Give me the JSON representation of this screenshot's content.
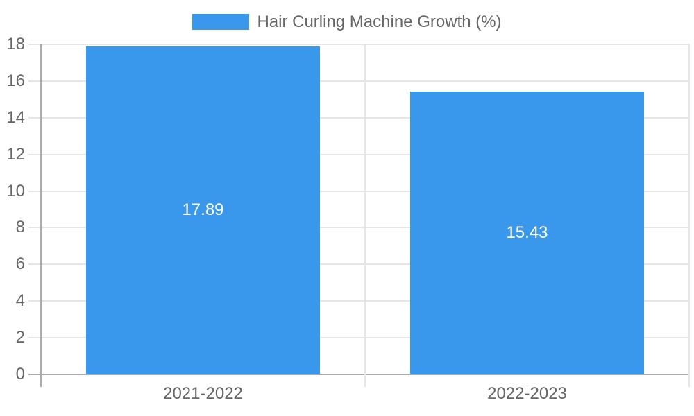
{
  "chart_data": {
    "type": "bar",
    "title": "Hair Curling Machine Growth (%)",
    "legend_position": "top",
    "categories": [
      "2021-2022",
      "2022-2023"
    ],
    "values": [
      17.89,
      15.43
    ],
    "value_labels": [
      "17.89",
      "15.43"
    ],
    "series": [
      {
        "name": "Hair Curling Machine Growth (%)",
        "values": [
          17.89,
          15.43
        ]
      }
    ],
    "xlabel": "",
    "ylabel": "",
    "ylim": [
      0,
      18
    ],
    "y_ticks": [
      0,
      2,
      4,
      6,
      8,
      10,
      12,
      14,
      16,
      18
    ],
    "grid": true,
    "bar_fraction": 0.72,
    "colors": {
      "bar": "#3A98EC",
      "grid": "#E5E5E5",
      "axis": "#ABABAB",
      "text": "#666666",
      "value_label": "#FFFFFF",
      "background": "#FFFFFF"
    }
  }
}
